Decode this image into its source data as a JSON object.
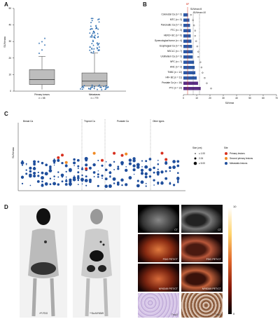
{
  "panels": {
    "A": {
      "letter": "A",
      "ylabel": "SUVmax",
      "yticks": [
        "0",
        "10",
        "20",
        "30",
        "40",
        "50"
      ],
      "groups": [
        {
          "label": "Primary tumors",
          "n": "n = 55"
        },
        {
          "label": "Metastases",
          "n": "n = 779"
        }
      ],
      "chart_data": {
        "type": "box",
        "categories": [
          "Primary tumors",
          "Metastases"
        ],
        "ylim": [
          0,
          50
        ],
        "boxes": [
          {
            "min": 1,
            "q1": 4,
            "median": 7,
            "q3": 13,
            "max": 21
          },
          {
            "min": 1,
            "q1": 3,
            "median": 6,
            "q3": 11,
            "max": 23
          }
        ]
      }
    },
    "B": {
      "letter": "B",
      "xlabel": "SUVmax",
      "xticks": [
        "0",
        "10",
        "20",
        "30",
        "40",
        "50",
        "60",
        "70"
      ],
      "bp_label": "BP",
      "line1": "SUVmax=5",
      "line2": "SUVmax=10",
      "chart_data": {
        "type": "bar",
        "xlim": [
          0,
          70
        ],
        "categories": [
          "Colorectal Ca (n = 2)",
          "MTC (n = 3)",
          "Pancreatic Ca (n = 2)",
          "FTC (n = 3)",
          "HER2+ BC (n = 6)",
          "Gynecological tumor (n = 4)",
          "Esophageal Ca (n = 4)",
          "NSCLC (n = 7)",
          "Urothelium Ca (n = 3)",
          "NPC (n = 7)",
          "HNC (n = 3)",
          "TNBC (n = 12)",
          "HR+ BC (n = 11)",
          "Prostate Ca (n = 16)",
          "PTC (n = 13)"
        ],
        "values": [
          3.5,
          4.5,
          5,
          5.5,
          5.5,
          6,
          6.5,
          7,
          7,
          8,
          8.5,
          9,
          10,
          11,
          13
        ]
      }
    },
    "C": {
      "letter": "C",
      "ylabel": "SUVmax",
      "groups": [
        "Breast Ca",
        "Thyroid Ca",
        "Prostate Ca",
        "Other types"
      ],
      "size_title": "Size (cm)",
      "sizes": [
        "≤ 1.00",
        "2.24",
        "≥ 5.00"
      ],
      "site_title": "Site",
      "sites": [
        {
          "label": "Primary lesions",
          "color": "#d7301f"
        },
        {
          "label": "Second primary lesions",
          "color": "#f08a24"
        },
        {
          "label": "Metastatic lesions",
          "color": "#1f4e9c"
        }
      ]
    },
    "D": {
      "letter": "D",
      "mip1": "¹⁸F-FDG",
      "mip2": "⁶⁸Ga-MY6349",
      "ct1": "CT",
      "ct2": "CT",
      "fdg1": "FDG PET/CT",
      "fdg2": "FDG PET/CT",
      "my1": "MY6349 PET/CT",
      "my2": "MY6349 PET/CT",
      "trop1": "Trop2",
      "trop2": "Trop2",
      "scale_max": "10",
      "scale_min": "0"
    }
  }
}
